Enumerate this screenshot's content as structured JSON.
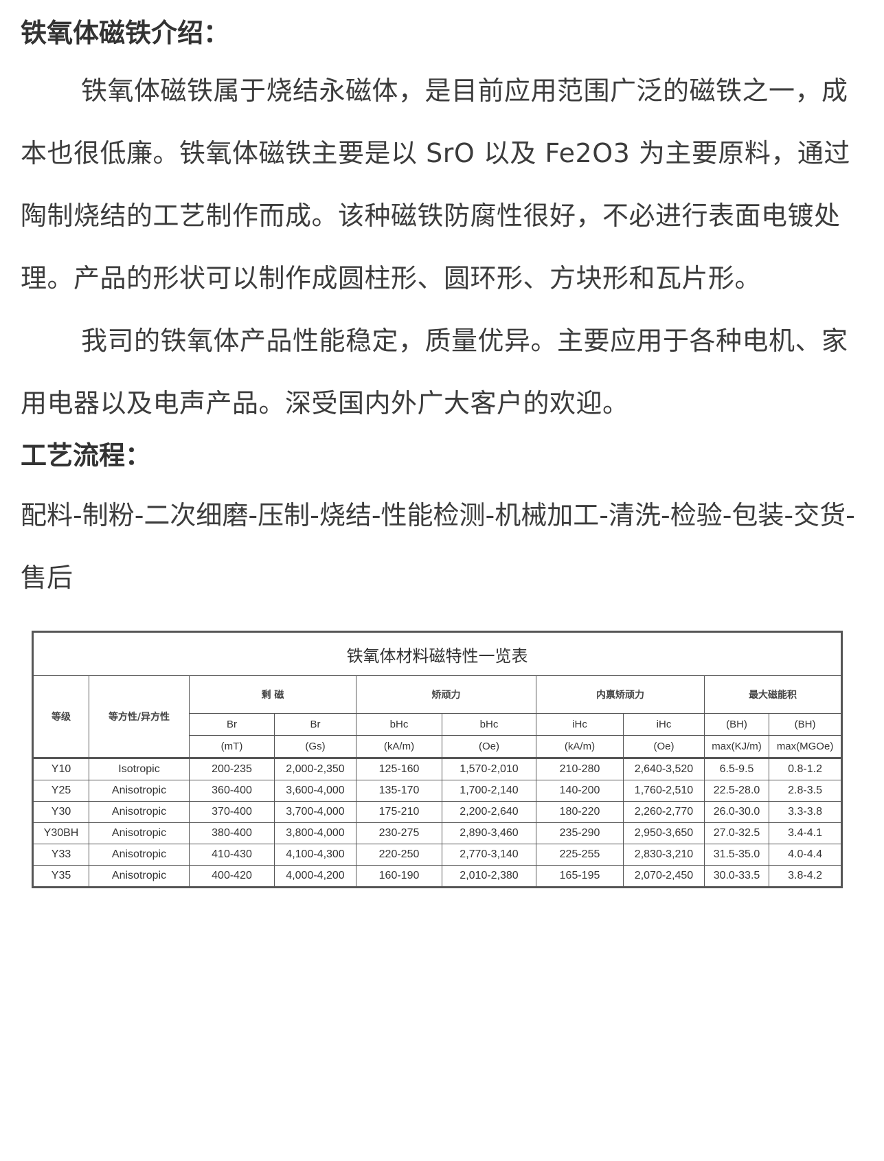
{
  "intro": {
    "heading": "铁氧体磁铁介绍：",
    "paragraph1": "铁氧体磁铁属于烧结永磁体，是目前应用范围广泛的磁铁之一，成本也很低廉。铁氧体磁铁主要是以 SrO 以及 Fe2O3 为主要原料，通过陶制烧结的工艺制作而成。该种磁铁防腐性很好，不必进行表面电镀处理。产品的形状可以制作成圆柱形、圆环形、方块形和瓦片形。",
    "paragraph2": "我司的铁氧体产品性能稳定，质量优异。主要应用于各种电机、家用电器以及电声产品。深受国内外广大客户的欢迎。"
  },
  "process": {
    "heading": "工艺流程：",
    "text": "配料-制粉-二次细磨-压制-烧结-性能检测-机械加工-清洗-检验-包装-交货-售后"
  },
  "table": {
    "title": "铁氧体材料磁特性一览表",
    "col_grade": "等级",
    "col_type": "等方性/异方性",
    "groups": [
      "剩 磁",
      "矫顽力",
      "内禀矫顽力",
      "最大磁能积"
    ],
    "sub": [
      "Br",
      "Br",
      "bHc",
      "bHc",
      "iHc",
      "iHc",
      "(BH)",
      "(BH)"
    ],
    "units": [
      "(mT)",
      "(Gs)",
      "(kA/m)",
      "(Oe)",
      "(kA/m)",
      "(Oe)",
      "max(KJ/m)",
      "max(MGOe)"
    ],
    "rows": [
      [
        "Y10",
        "Isotropic",
        "200-235",
        "2,000-2,350",
        "125-160",
        "1,570-2,010",
        "210-280",
        "2,640-3,520",
        "6.5-9.5",
        "0.8-1.2"
      ],
      [
        "Y25",
        "Anisotropic",
        "360-400",
        "3,600-4,000",
        "135-170",
        "1,700-2,140",
        "140-200",
        "1,760-2,510",
        "22.5-28.0",
        "2.8-3.5"
      ],
      [
        "Y30",
        "Anisotropic",
        "370-400",
        "3,700-4,000",
        "175-210",
        "2,200-2,640",
        "180-220",
        "2,260-2,770",
        "26.0-30.0",
        "3.3-3.8"
      ],
      [
        "Y30BH",
        "Anisotropic",
        "380-400",
        "3,800-4,000",
        "230-275",
        "2,890-3,460",
        "235-290",
        "2,950-3,650",
        "27.0-32.5",
        "3.4-4.1"
      ],
      [
        "Y33",
        "Anisotropic",
        "410-430",
        "4,100-4,300",
        "220-250",
        "2,770-3,140",
        "225-255",
        "2,830-3,210",
        "31.5-35.0",
        "4.0-4.4"
      ],
      [
        "Y35",
        "Anisotropic",
        "400-420",
        "4,000-4,200",
        "160-190",
        "2,010-2,380",
        "165-195",
        "2,070-2,450",
        "30.0-33.5",
        "3.8-4.2"
      ]
    ]
  }
}
